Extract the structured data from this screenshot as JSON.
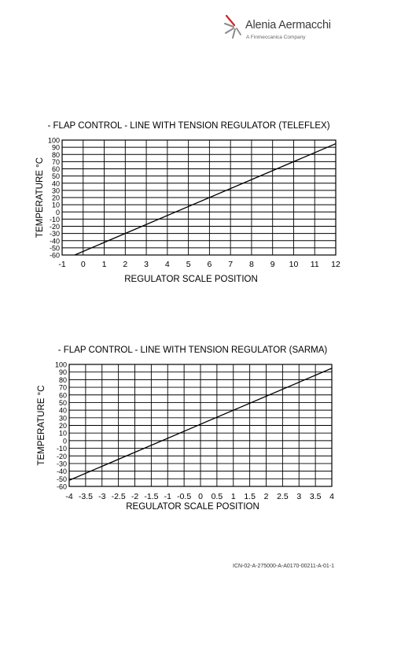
{
  "logo": {
    "name": "Alenia Aermacchi",
    "tagline": "A Finmeccanica Company",
    "accent": "#d2232a",
    "icon": "alenia-star-mark"
  },
  "chart_data": [
    {
      "type": "line",
      "title": "- FLAP CONTROL - LINE WITH TENSION REGULATOR (TELEFLEX)",
      "xlabel": "REGULATOR SCALE POSITION",
      "ylabel": "TEMPERATURE °C",
      "xlim": [
        -1,
        12
      ],
      "ylim": [
        -60,
        100
      ],
      "x_ticks": [
        "-1",
        "0",
        "1",
        "2",
        "3",
        "4",
        "5",
        "6",
        "7",
        "8",
        "9",
        "10",
        "11",
        "12"
      ],
      "y_ticks": [
        "100",
        "90",
        "80",
        "70",
        "60",
        "50",
        "40",
        "30",
        "20",
        "10",
        "0",
        "-10",
        "-20",
        "-30",
        "-40",
        "-50",
        "-60"
      ],
      "grid": true,
      "series": [
        {
          "x": [
            -0.4,
            12
          ],
          "y": [
            -60,
            95
          ]
        }
      ]
    },
    {
      "type": "line",
      "title": "- FLAP CONTROL - LINE WITH TENSION REGULATOR (SARMA)",
      "xlabel": "REGULATOR SCALE POSITION",
      "ylabel": "TEMPERATURE °C",
      "xlim": [
        -4,
        4
      ],
      "ylim": [
        -60,
        100
      ],
      "x_ticks": [
        "-4",
        "-3.5",
        "-3",
        "-2.5",
        "-2",
        "-1.5",
        "-1",
        "-0.5",
        "0",
        "0.5",
        "1",
        "1.5",
        "2",
        "2.5",
        "3",
        "3.5",
        "4"
      ],
      "y_ticks": [
        "100",
        "90",
        "80",
        "70",
        "60",
        "50",
        "40",
        "30",
        "20",
        "10",
        "0",
        "-10",
        "-20",
        "-30",
        "-40",
        "-50",
        "-60"
      ],
      "grid": true,
      "series": [
        {
          "x": [
            -4,
            4
          ],
          "y": [
            -52,
            95
          ]
        }
      ]
    }
  ],
  "footer": {
    "icn": "ICN-02-A-275000-A-A0170-00211-A-01-1"
  }
}
